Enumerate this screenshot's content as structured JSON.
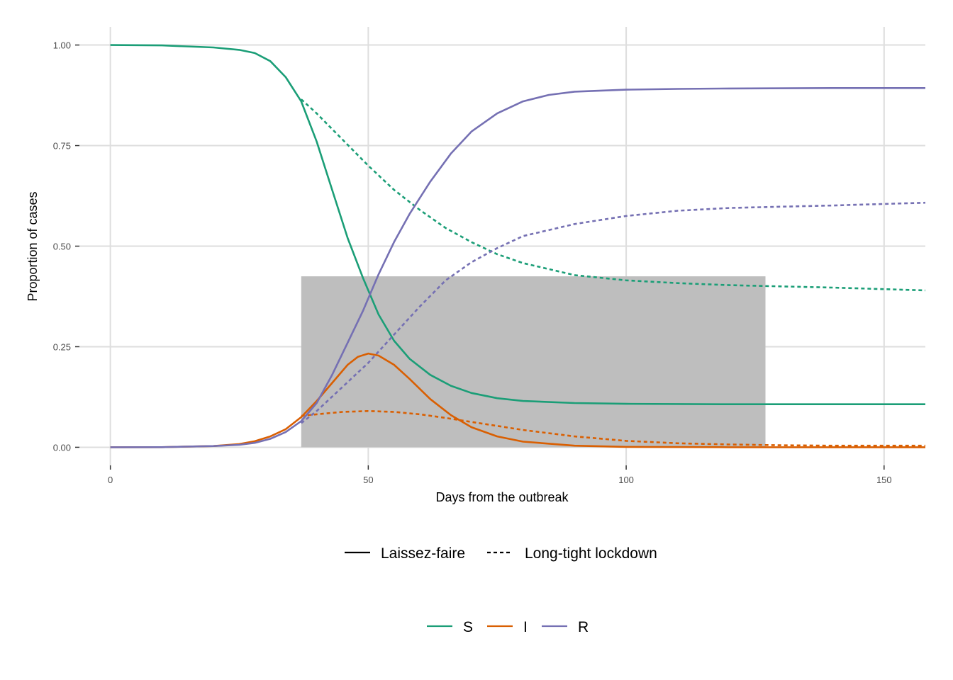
{
  "chart_data": {
    "type": "line",
    "title": "",
    "xlabel": "Days from the outbreak",
    "ylabel": "Proportion of cases",
    "xlim": [
      -6,
      158
    ],
    "ylim": [
      -0.045,
      1.045
    ],
    "x_ticks": [
      0,
      50,
      100,
      150
    ],
    "y_ticks": [
      0,
      0.25,
      0.5,
      0.75,
      1
    ],
    "x_tick_labels": [
      "0",
      "50",
      "100",
      "150"
    ],
    "y_tick_labels": [
      "0.00",
      "0.25",
      "0.50",
      "0.75",
      "1.00"
    ],
    "grid": true,
    "shaded_region": {
      "x": [
        37,
        127
      ],
      "y": [
        0,
        0.425
      ],
      "color": "#bebebe"
    },
    "colors": {
      "S": "#1b9e77",
      "I": "#d95f02",
      "R": "#7570b3"
    },
    "legend_position": "bottom",
    "legend_linetype": [
      {
        "label": "Laissez-faire",
        "style": "solid"
      },
      {
        "label": "Long-tight lockdown",
        "style": "dashed"
      }
    ],
    "legend_color": [
      {
        "label": "S",
        "color": "#1b9e77"
      },
      {
        "label": "I",
        "color": "#d95f02"
      },
      {
        "label": "R",
        "color": "#7570b3"
      }
    ],
    "series": [
      {
        "compartment": "S",
        "scenario": "Laissez-faire",
        "style": "solid",
        "x": [
          0,
          10,
          20,
          25,
          28,
          31,
          34,
          37,
          40,
          43,
          46,
          49,
          52,
          55,
          58,
          62,
          66,
          70,
          75,
          80,
          90,
          100,
          120,
          140,
          158
        ],
        "y": [
          1.0,
          0.999,
          0.994,
          0.988,
          0.98,
          0.96,
          0.92,
          0.86,
          0.76,
          0.64,
          0.52,
          0.42,
          0.33,
          0.265,
          0.22,
          0.18,
          0.153,
          0.135,
          0.122,
          0.115,
          0.11,
          0.108,
          0.107,
          0.107,
          0.107
        ]
      },
      {
        "compartment": "S",
        "scenario": "Long-tight lockdown",
        "style": "dashed",
        "x": [
          37,
          40,
          45,
          50,
          55,
          60,
          65,
          70,
          75,
          80,
          90,
          100,
          110,
          120,
          130,
          140,
          158
        ],
        "y": [
          0.865,
          0.83,
          0.765,
          0.7,
          0.64,
          0.59,
          0.545,
          0.51,
          0.48,
          0.458,
          0.428,
          0.415,
          0.408,
          0.403,
          0.4,
          0.397,
          0.39
        ]
      },
      {
        "compartment": "I",
        "scenario": "Laissez-faire",
        "style": "solid",
        "x": [
          0,
          10,
          20,
          25,
          28,
          31,
          34,
          37,
          40,
          43,
          46,
          48,
          50,
          52,
          55,
          58,
          62,
          66,
          70,
          75,
          80,
          90,
          100,
          120,
          140,
          158
        ],
        "y": [
          0.0,
          0.0002,
          0.003,
          0.008,
          0.015,
          0.027,
          0.045,
          0.075,
          0.115,
          0.16,
          0.205,
          0.225,
          0.233,
          0.228,
          0.205,
          0.17,
          0.12,
          0.08,
          0.05,
          0.027,
          0.014,
          0.004,
          0.001,
          0.0,
          0.0,
          0.0
        ]
      },
      {
        "compartment": "I",
        "scenario": "Long-tight lockdown",
        "style": "dashed",
        "x": [
          37,
          40,
          45,
          50,
          55,
          60,
          65,
          70,
          75,
          80,
          90,
          100,
          110,
          120,
          130,
          140,
          158
        ],
        "y": [
          0.078,
          0.082,
          0.088,
          0.09,
          0.088,
          0.082,
          0.073,
          0.063,
          0.053,
          0.043,
          0.027,
          0.016,
          0.01,
          0.007,
          0.005,
          0.004,
          0.004
        ]
      },
      {
        "compartment": "R",
        "scenario": "Laissez-faire",
        "style": "solid",
        "x": [
          0,
          10,
          20,
          25,
          28,
          31,
          34,
          37,
          40,
          43,
          46,
          49,
          52,
          55,
          58,
          62,
          66,
          70,
          75,
          80,
          85,
          90,
          100,
          110,
          120,
          140,
          158
        ],
        "y": [
          0.0,
          0.0002,
          0.003,
          0.006,
          0.011,
          0.021,
          0.038,
          0.065,
          0.11,
          0.18,
          0.26,
          0.34,
          0.43,
          0.51,
          0.58,
          0.66,
          0.73,
          0.785,
          0.83,
          0.86,
          0.876,
          0.884,
          0.889,
          0.891,
          0.892,
          0.893,
          0.893
        ]
      },
      {
        "compartment": "R",
        "scenario": "Long-tight lockdown",
        "style": "dashed",
        "x": [
          37,
          40,
          45,
          50,
          55,
          60,
          65,
          70,
          75,
          80,
          90,
          100,
          110,
          120,
          130,
          140,
          158
        ],
        "y": [
          0.06,
          0.09,
          0.15,
          0.21,
          0.28,
          0.35,
          0.415,
          0.46,
          0.495,
          0.525,
          0.555,
          0.575,
          0.588,
          0.595,
          0.598,
          0.601,
          0.608
        ]
      }
    ]
  }
}
